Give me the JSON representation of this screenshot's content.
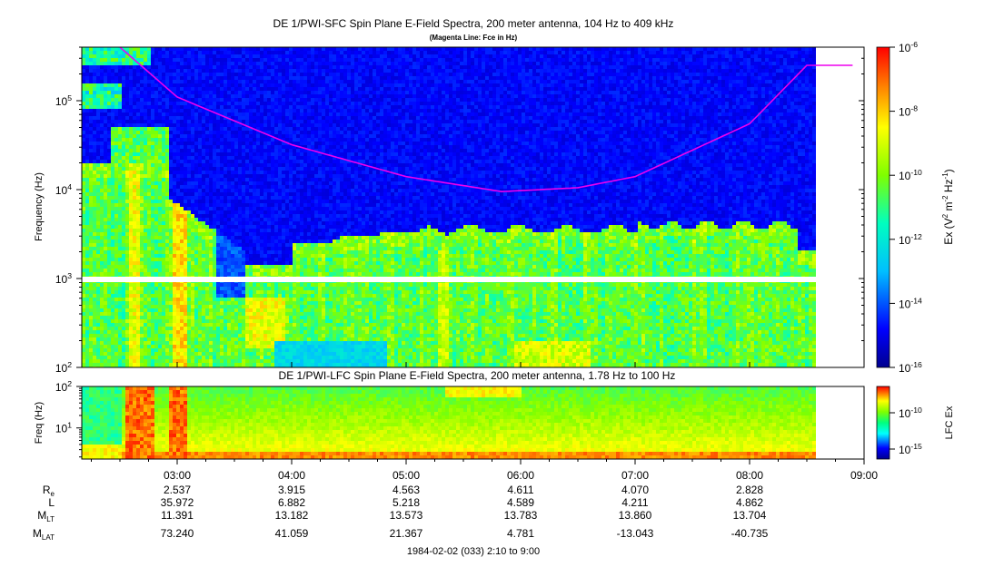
{
  "chart_data": [
    {
      "type": "heatmap",
      "title": "DE 1/PWI-SFC  Spin Plane E-Field Spectra, 200 meter antenna, 104 Hz to 409 kHz",
      "subtitle": "(Magenta Line: Fce in Hz)",
      "ylabel": "Frequency (Hz)",
      "yscale": "log",
      "ylim": [
        100,
        400000
      ],
      "y_ticks": [
        "10^2",
        "10^3",
        "10^4",
        "10^5"
      ],
      "colorbar": {
        "label": "Ex (V^2 m^-2 Hz^-1)",
        "scale": "log",
        "range": [
          1e-16,
          1e-06
        ],
        "ticks": [
          "10^-6",
          "10^-8",
          "10^-10",
          "10^-12",
          "10^-14",
          "10^-16"
        ]
      },
      "fce_line": {
        "color": "#ee00ee",
        "x": [
          "02:30",
          "03:00",
          "04:00",
          "05:00",
          "05:50",
          "06:30",
          "07:00",
          "08:00",
          "08:30"
        ],
        "y": [
          400000,
          110000,
          32000,
          14000,
          9500,
          10500,
          14000,
          55000,
          250000
        ]
      }
    },
    {
      "type": "heatmap",
      "title": "DE 1/PWI-LFC  Spin Plane E-Field Spectra, 200 meter antenna, 1.78 Hz to 100 Hz",
      "ylabel": "Freq (Hz)",
      "yscale": "log",
      "ylim": [
        1.78,
        100
      ],
      "y_ticks": [
        "10^2",
        "10^1"
      ],
      "colorbar": {
        "label": "LFC Ex",
        "scale": "log",
        "ticks": [
          "10^-10",
          "10^-15"
        ]
      }
    }
  ],
  "x_axis": {
    "ticks": [
      "03:00",
      "04:00",
      "05:00",
      "06:00",
      "07:00",
      "08:00",
      "09:00"
    ],
    "label": "1984-02-02 (033) 2:10 to 9:00"
  },
  "ephemeris": {
    "rows": [
      {
        "label": "R",
        "sub": "e",
        "values": [
          "2.537",
          "3.915",
          "4.563",
          "4.611",
          "4.070",
          "2.828"
        ]
      },
      {
        "label": "L",
        "sub": "",
        "values": [
          "35.972",
          "6.882",
          "5.218",
          "4.589",
          "4.211",
          "4.862"
        ]
      },
      {
        "label": "M",
        "sub": "LT",
        "values": [
          "11.391",
          "13.182",
          "13.573",
          "13.783",
          "13.860",
          "13.704"
        ]
      },
      {
        "label": "M",
        "sub": "LAT",
        "values": [
          "73.240",
          "41.059",
          "21.367",
          "4.781",
          "-13.043",
          "-40.735"
        ]
      }
    ]
  }
}
